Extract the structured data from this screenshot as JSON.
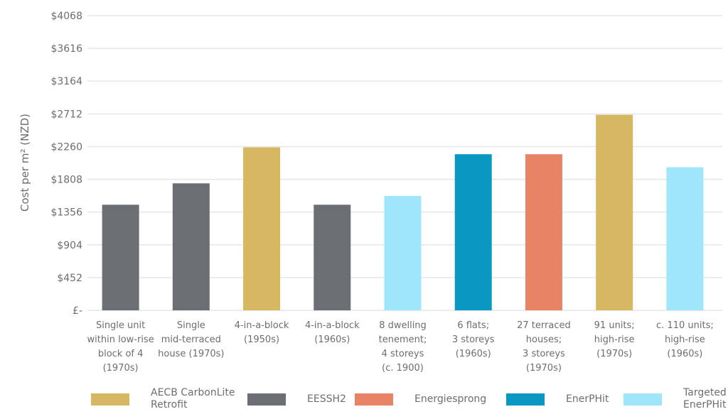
{
  "chart_data": {
    "type": "bar",
    "title": "",
    "xlabel": "",
    "ylabel": "Cost per m² (NZD)",
    "ylim": [
      0,
      4068
    ],
    "yticks": [
      0,
      452,
      904,
      1356,
      1808,
      2260,
      2712,
      3164,
      3616,
      4068
    ],
    "ytick_labels": [
      "£-",
      "$452",
      "$904",
      "$1356",
      "$1808",
      "$2260",
      "$2712",
      "$3164",
      "$3616",
      "$4068"
    ],
    "grid": true,
    "legend_position": "bottom",
    "categories": [
      [
        "Single unit",
        "within low-rise",
        "block of 4",
        "(1970s)"
      ],
      [
        "Single",
        "mid-terraced",
        "house (1970s)"
      ],
      [
        "4-in-a-block",
        "(1950s)"
      ],
      [
        "4-in-a-block",
        "(1960s)"
      ],
      [
        "8 dwelling",
        "tenement;",
        "4 storeys",
        "(c. 1900)"
      ],
      [
        "6 flats;",
        "3 storeys",
        "(1960s)"
      ],
      [
        "27 terraced",
        "houses;",
        "3 storeys",
        "(1970s)"
      ],
      [
        "91 units;",
        "high-rise",
        "(1970s)"
      ],
      [
        "c. 110 units;",
        "high-rise",
        "(1960s)"
      ]
    ],
    "values": [
      1458,
      1753,
      2250,
      1458,
      1579,
      2155,
      2155,
      2700,
      1975
    ],
    "bar_series": [
      "EESSH2",
      "EESSH2",
      "AECB CarbonLite Retrofit",
      "EESSH2",
      "Targeted EnerPHit",
      "EnerPHit",
      "Energiesprong",
      "AECB CarbonLite Retrofit",
      "Targeted EnerPHit"
    ],
    "series": [
      {
        "name": "AECB CarbonLite Retrofit",
        "color": "#d6b862"
      },
      {
        "name": "EESSH2",
        "color": "#6b6e73"
      },
      {
        "name": "Energiesprong",
        "color": "#e88366"
      },
      {
        "name": "EnerPHit",
        "color": "#0a97c2"
      },
      {
        "name": "Targeted EnerPHit",
        "color": "#9fe6fb"
      }
    ]
  },
  "legend": {
    "items": [
      {
        "label": "AECB CarbonLite\nRetrofit",
        "color": "#d6b862"
      },
      {
        "label": "EESSH2",
        "color": "#6b6e73"
      },
      {
        "label": "Energiesprong",
        "color": "#e88366"
      },
      {
        "label": "EnerPHit",
        "color": "#0a97c2"
      },
      {
        "label": "Targeted\nEnerPHit",
        "color": "#9fe6fb"
      }
    ]
  }
}
